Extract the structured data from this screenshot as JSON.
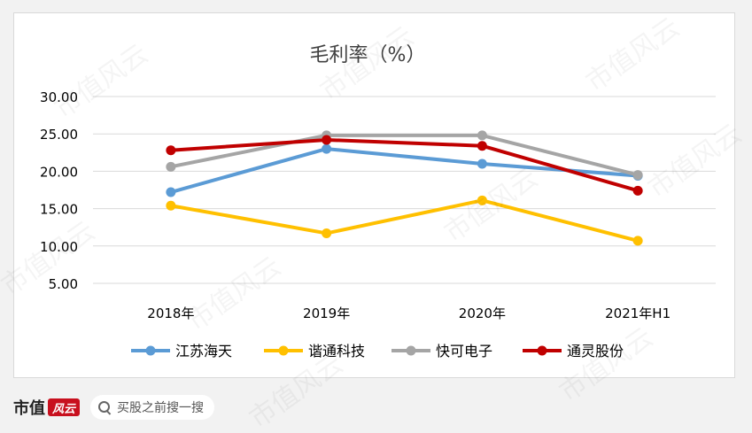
{
  "chart_data": {
    "type": "line",
    "title": "毛利率（%）",
    "categories": [
      "2018年",
      "2019年",
      "2020年",
      "2021年H1"
    ],
    "ylim": [
      5,
      30
    ],
    "yticks": [
      "30.00",
      "25.00",
      "20.00",
      "15.00",
      "10.00",
      "5.00"
    ],
    "ytick_values": [
      30,
      25,
      20,
      15,
      10,
      5
    ],
    "grid": true,
    "legend_position": "bottom",
    "series": [
      {
        "name": "江苏海天",
        "color": "#5b9bd5",
        "values": [
          17.2,
          23.0,
          21.0,
          19.4
        ]
      },
      {
        "name": "谐通科技",
        "color": "#ffc000",
        "values": [
          15.4,
          11.7,
          16.1,
          10.7
        ]
      },
      {
        "name": "快可电子",
        "color": "#a5a5a5",
        "values": [
          20.6,
          24.8,
          24.8,
          19.5
        ]
      },
      {
        "name": "通灵股份",
        "color": "#c00000",
        "values": [
          22.8,
          24.2,
          23.4,
          17.4
        ]
      }
    ]
  },
  "watermark": "市值风云",
  "footer": {
    "brand_text": "市值",
    "brand_logo": "风云",
    "search_placeholder": "买股之前搜一搜",
    "search_icon": "search-icon"
  }
}
